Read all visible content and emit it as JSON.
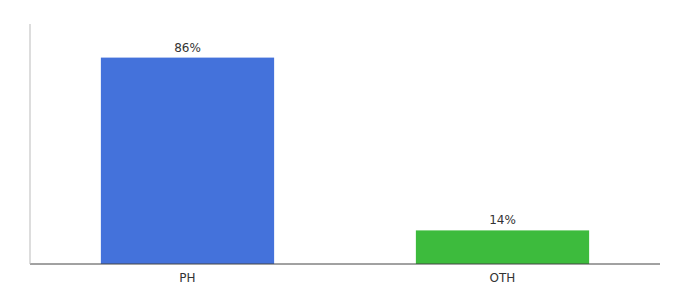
{
  "chart_data": {
    "type": "bar",
    "categories": [
      "PH",
      "OTH"
    ],
    "values": [
      86,
      14
    ],
    "value_labels": [
      "86%",
      "14%"
    ],
    "colors": [
      "#4472db",
      "#3dbb3d"
    ],
    "ylim": [
      0,
      100
    ],
    "data_labels": true,
    "tick_labels": "x",
    "grid": false
  }
}
